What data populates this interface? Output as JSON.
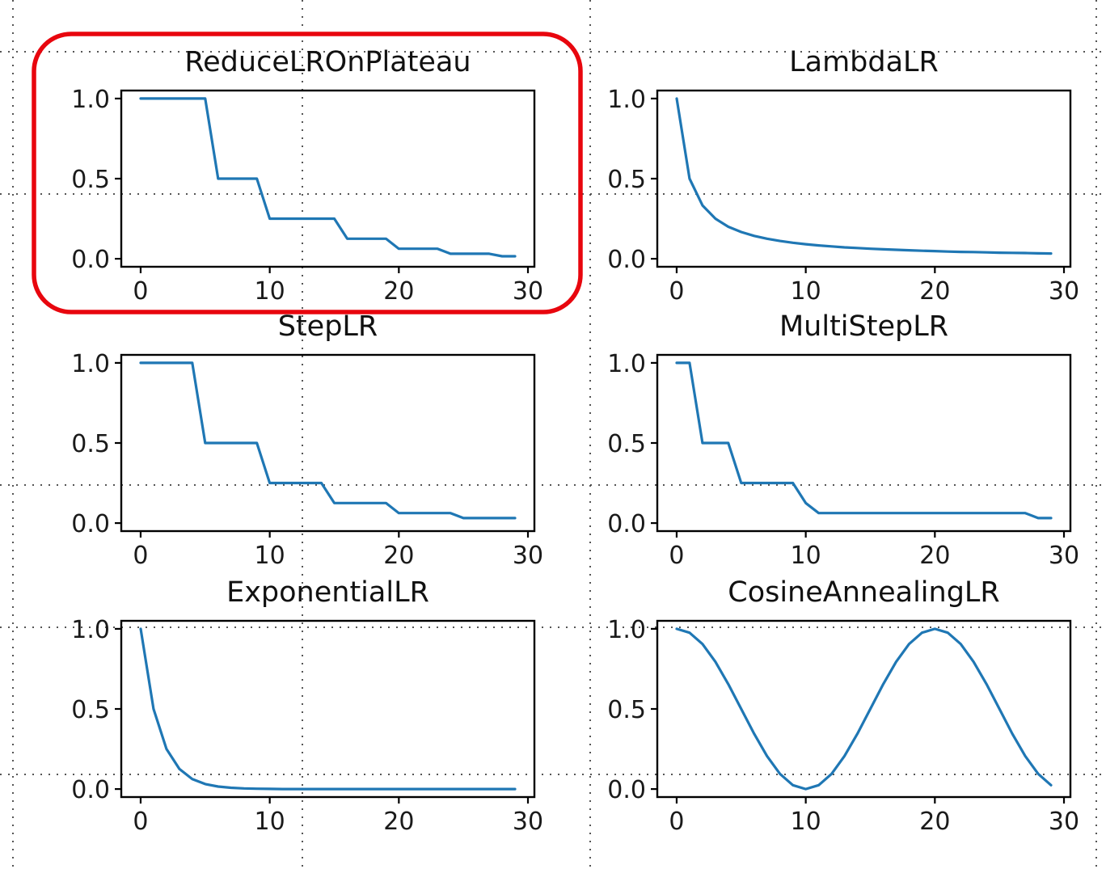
{
  "figure": {
    "highlight_color": "#e8060e",
    "line_color": "#1f77b4",
    "highlighted_panel": "ReduceLROnPlateau"
  },
  "chart_data": [
    {
      "type": "line",
      "title": "ReduceLROnPlateau",
      "xlabel": "",
      "ylabel": "",
      "xlim": [
        -1.5,
        30.5
      ],
      "ylim": [
        -0.05,
        1.05
      ],
      "xticks": [
        "0",
        "10",
        "20",
        "30"
      ],
      "yticks": [
        "0.0",
        "0.5",
        "1.0"
      ],
      "x": [
        0,
        1,
        2,
        3,
        4,
        5,
        6,
        7,
        8,
        9,
        10,
        11,
        12,
        13,
        14,
        15,
        16,
        17,
        18,
        19,
        20,
        21,
        22,
        23,
        24,
        25,
        26,
        27,
        28,
        29
      ],
      "y": [
        1,
        1,
        1,
        1,
        1,
        1,
        0.5,
        0.5,
        0.5,
        0.5,
        0.25,
        0.25,
        0.25,
        0.25,
        0.25,
        0.25,
        0.125,
        0.125,
        0.125,
        0.125,
        0.0625,
        0.0625,
        0.0625,
        0.0625,
        0.03125,
        0.03125,
        0.03125,
        0.03125,
        0.015625,
        0.015625
      ],
      "grid": false
    },
    {
      "type": "line",
      "title": "LambdaLR",
      "xlabel": "",
      "ylabel": "",
      "xlim": [
        -1.5,
        30.5
      ],
      "ylim": [
        -0.05,
        1.05
      ],
      "xticks": [
        "0",
        "10",
        "20",
        "30"
      ],
      "yticks": [
        "0.0",
        "0.5",
        "1.0"
      ],
      "x": [
        0,
        1,
        2,
        3,
        4,
        5,
        6,
        7,
        8,
        9,
        10,
        11,
        12,
        13,
        14,
        15,
        16,
        17,
        18,
        19,
        20,
        21,
        22,
        23,
        24,
        25,
        26,
        27,
        28,
        29
      ],
      "y": [
        1,
        0.5,
        0.333,
        0.25,
        0.2,
        0.167,
        0.143,
        0.125,
        0.111,
        0.1,
        0.091,
        0.083,
        0.077,
        0.071,
        0.067,
        0.0625,
        0.059,
        0.056,
        0.053,
        0.05,
        0.048,
        0.045,
        0.043,
        0.042,
        0.04,
        0.038,
        0.037,
        0.036,
        0.034,
        0.033
      ],
      "grid": false
    },
    {
      "type": "line",
      "title": "StepLR",
      "xlabel": "",
      "ylabel": "",
      "xlim": [
        -1.5,
        30.5
      ],
      "ylim": [
        -0.05,
        1.05
      ],
      "xticks": [
        "0",
        "10",
        "20",
        "30"
      ],
      "yticks": [
        "0.0",
        "0.5",
        "1.0"
      ],
      "x": [
        0,
        1,
        2,
        3,
        4,
        5,
        6,
        7,
        8,
        9,
        10,
        11,
        12,
        13,
        14,
        15,
        16,
        17,
        18,
        19,
        20,
        21,
        22,
        23,
        24,
        25,
        26,
        27,
        28,
        29
      ],
      "y": [
        1,
        1,
        1,
        1,
        1,
        0.5,
        0.5,
        0.5,
        0.5,
        0.5,
        0.25,
        0.25,
        0.25,
        0.25,
        0.25,
        0.125,
        0.125,
        0.125,
        0.125,
        0.125,
        0.0625,
        0.0625,
        0.0625,
        0.0625,
        0.0625,
        0.03125,
        0.03125,
        0.03125,
        0.03125,
        0.03125
      ],
      "grid": false
    },
    {
      "type": "line",
      "title": "MultiStepLR",
      "xlabel": "",
      "ylabel": "",
      "xlim": [
        -1.5,
        30.5
      ],
      "ylim": [
        -0.05,
        1.05
      ],
      "xticks": [
        "0",
        "10",
        "20",
        "30"
      ],
      "yticks": [
        "0.0",
        "0.5",
        "1.0"
      ],
      "x": [
        0,
        1,
        2,
        3,
        4,
        5,
        6,
        7,
        8,
        9,
        10,
        11,
        12,
        13,
        14,
        15,
        16,
        17,
        18,
        19,
        20,
        21,
        22,
        23,
        24,
        25,
        26,
        27,
        28,
        29
      ],
      "y": [
        1,
        1,
        0.5,
        0.5,
        0.5,
        0.25,
        0.25,
        0.25,
        0.25,
        0.25,
        0.125,
        0.0625,
        0.0625,
        0.0625,
        0.0625,
        0.0625,
        0.0625,
        0.0625,
        0.0625,
        0.0625,
        0.0625,
        0.0625,
        0.0625,
        0.0625,
        0.0625,
        0.0625,
        0.0625,
        0.0625,
        0.03125,
        0.03125
      ],
      "grid": false
    },
    {
      "type": "line",
      "title": "ExponentialLR",
      "xlabel": "",
      "ylabel": "",
      "xlim": [
        -1.5,
        30.5
      ],
      "ylim": [
        -0.05,
        1.05
      ],
      "xticks": [
        "0",
        "10",
        "20",
        "30"
      ],
      "yticks": [
        "0.0",
        "0.5",
        "1.0"
      ],
      "x": [
        0,
        1,
        2,
        3,
        4,
        5,
        6,
        7,
        8,
        9,
        10,
        11,
        12,
        13,
        14,
        15,
        16,
        17,
        18,
        19,
        20,
        21,
        22,
        23,
        24,
        25,
        26,
        27,
        28,
        29
      ],
      "y": [
        1,
        0.5,
        0.25,
        0.125,
        0.0625,
        0.03125,
        0.0156,
        0.0078,
        0.0039,
        0.002,
        0.001,
        0,
        0,
        0,
        0,
        0,
        0,
        0,
        0,
        0,
        0,
        0,
        0,
        0,
        0,
        0,
        0,
        0,
        0,
        0
      ],
      "grid": false
    },
    {
      "type": "line",
      "title": "CosineAnnealingLR",
      "xlabel": "",
      "ylabel": "",
      "xlim": [
        -1.5,
        30.5
      ],
      "ylim": [
        -0.05,
        1.05
      ],
      "xticks": [
        "0",
        "10",
        "20",
        "30"
      ],
      "yticks": [
        "0.0",
        "0.5",
        "1.0"
      ],
      "x": [
        0,
        1,
        2,
        3,
        4,
        5,
        6,
        7,
        8,
        9,
        10,
        11,
        12,
        13,
        14,
        15,
        16,
        17,
        18,
        19,
        20,
        21,
        22,
        23,
        24,
        25,
        26,
        27,
        28,
        29
      ],
      "y": [
        1,
        0.976,
        0.905,
        0.794,
        0.655,
        0.5,
        0.345,
        0.206,
        0.095,
        0.024,
        0,
        0.024,
        0.095,
        0.206,
        0.345,
        0.5,
        0.655,
        0.794,
        0.905,
        0.976,
        1,
        0.976,
        0.905,
        0.794,
        0.655,
        0.5,
        0.345,
        0.206,
        0.095,
        0.024
      ],
      "grid": false
    }
  ]
}
